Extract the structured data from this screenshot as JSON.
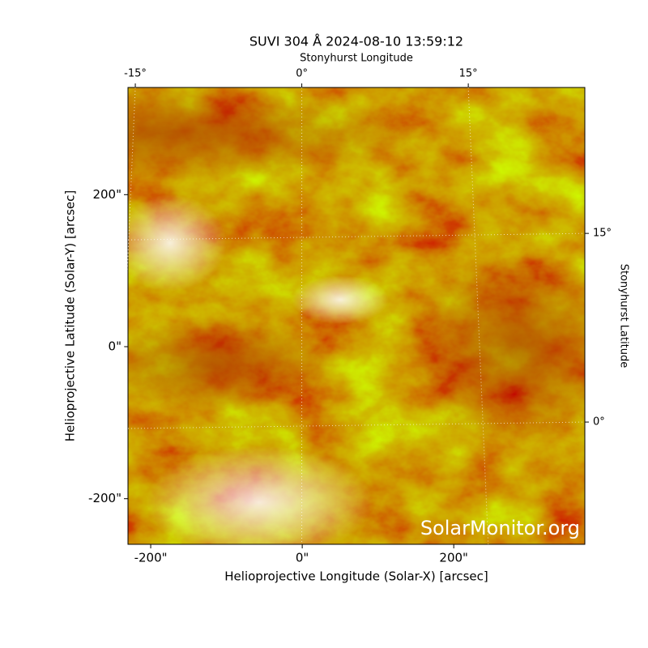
{
  "chart_data": {
    "type": "image",
    "title": "SUVI 304 Å 2024-08-10 13:59:12",
    "x_label": "Helioprojective Longitude (Solar-X) [arcsec]",
    "y_label": "Helioprojective Latitude (Solar-Y) [arcsec]",
    "x2_label": "Stonyhurst Longitude",
    "y2_label": "Stonyhurst Latitude",
    "watermark": "SolarMonitor.org",
    "xlim": [
      -230,
      373
    ],
    "ylim": [
      -260,
      341
    ],
    "xticks": [
      {
        "value": -200,
        "label": "-200\""
      },
      {
        "value": 0,
        "label": "0\""
      },
      {
        "value": 200,
        "label": "200\""
      }
    ],
    "yticks": [
      {
        "value": -200,
        "label": "-200\""
      },
      {
        "value": 0,
        "label": "0\""
      },
      {
        "value": 200,
        "label": "200\""
      }
    ],
    "x2lim": [
      -15.66,
      25.5
    ],
    "x2ticks": [
      {
        "value": -15,
        "label": "-15°"
      },
      {
        "value": 0,
        "label": "0°"
      },
      {
        "value": 15,
        "label": "15°"
      }
    ],
    "y2lim": [
      -9.72,
      26.6
    ],
    "y2ticks": [
      {
        "value": 0,
        "label": "0°"
      },
      {
        "value": 15,
        "label": "15°"
      }
    ],
    "grid": true
  }
}
